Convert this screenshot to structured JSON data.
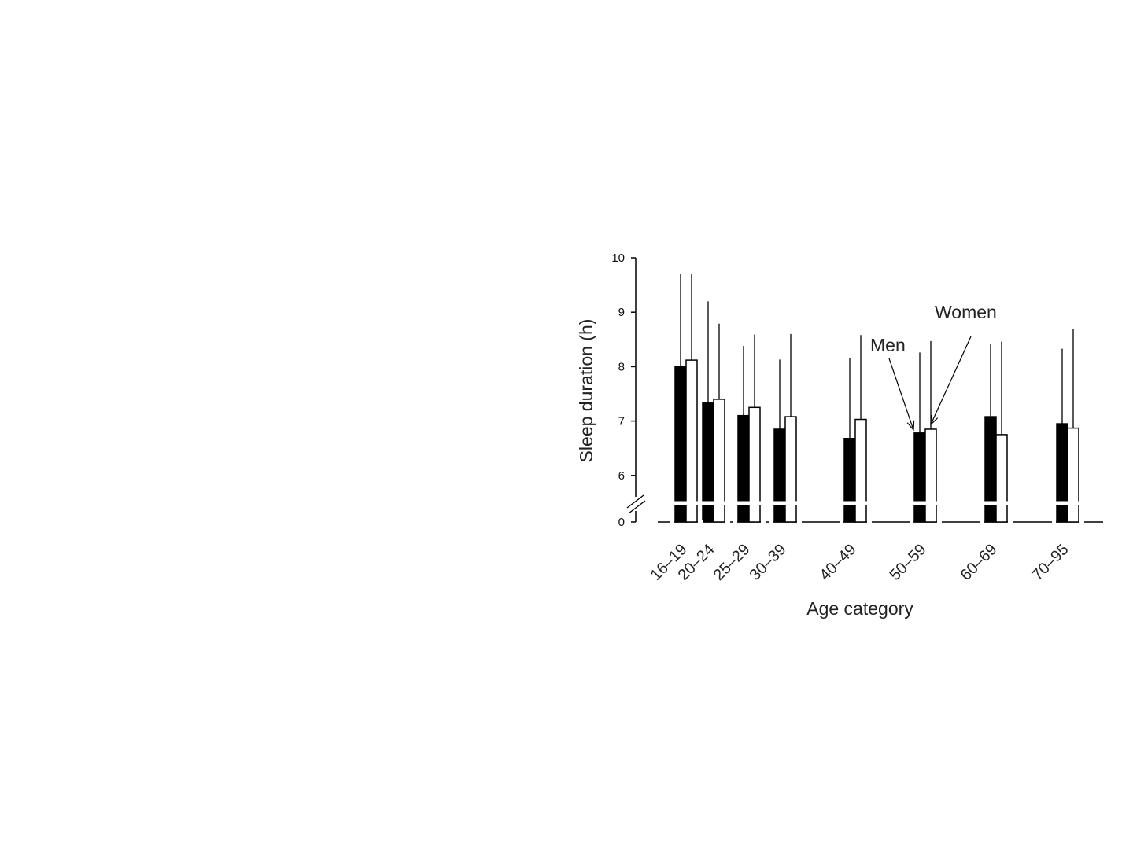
{
  "chart_data": {
    "type": "bar",
    "title": "",
    "xlabel": "Age category",
    "ylabel": "Sleep duration (h)",
    "ylim": [
      5.5,
      10
    ],
    "y_axis_break": true,
    "y_ticks": [
      "0",
      "6",
      "7",
      "8",
      "9",
      "10"
    ],
    "legend": "none",
    "categories": [
      "16–19",
      "20–24",
      "25–29",
      "30–39",
      "40–49",
      "50–59",
      "60–69",
      "70–95"
    ],
    "series": [
      {
        "name": "Men",
        "color": "#000000",
        "values": [
          8.0,
          7.33,
          7.1,
          6.85,
          6.68,
          6.78,
          7.08,
          6.95
        ],
        "error_upper": [
          9.7,
          9.2,
          8.38,
          8.13,
          8.15,
          8.26,
          8.41,
          8.33
        ]
      },
      {
        "name": "Women",
        "color": "#ffffff",
        "values": [
          8.12,
          7.4,
          7.25,
          7.08,
          7.03,
          6.85,
          6.75,
          6.87
        ],
        "error_upper": [
          9.7,
          8.79,
          8.59,
          8.6,
          8.58,
          8.47,
          8.46,
          8.7
        ]
      }
    ],
    "annotations": [
      {
        "text": "Men",
        "points_to": "Men bar, 50–59"
      },
      {
        "text": "Women",
        "points_to": "Women bar, 50–59"
      }
    ]
  }
}
